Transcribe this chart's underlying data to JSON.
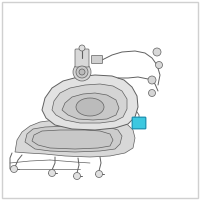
{
  "bg_color": "#ffffff",
  "border_color": "#d0d0d0",
  "line_color": "#606060",
  "line_color_light": "#888888",
  "highlight_color": "#3cc8e0",
  "highlight_edge": "#1a90b0",
  "tank_fill": "#e2e2e2",
  "tank_fill2": "#d4d4d4",
  "tank_fill3": "#c8c8c8",
  "shield_fill": "#d8d8d8",
  "shield_fill2": "#cccccc",
  "fig_size": [
    2.0,
    2.0
  ],
  "dpi": 100
}
